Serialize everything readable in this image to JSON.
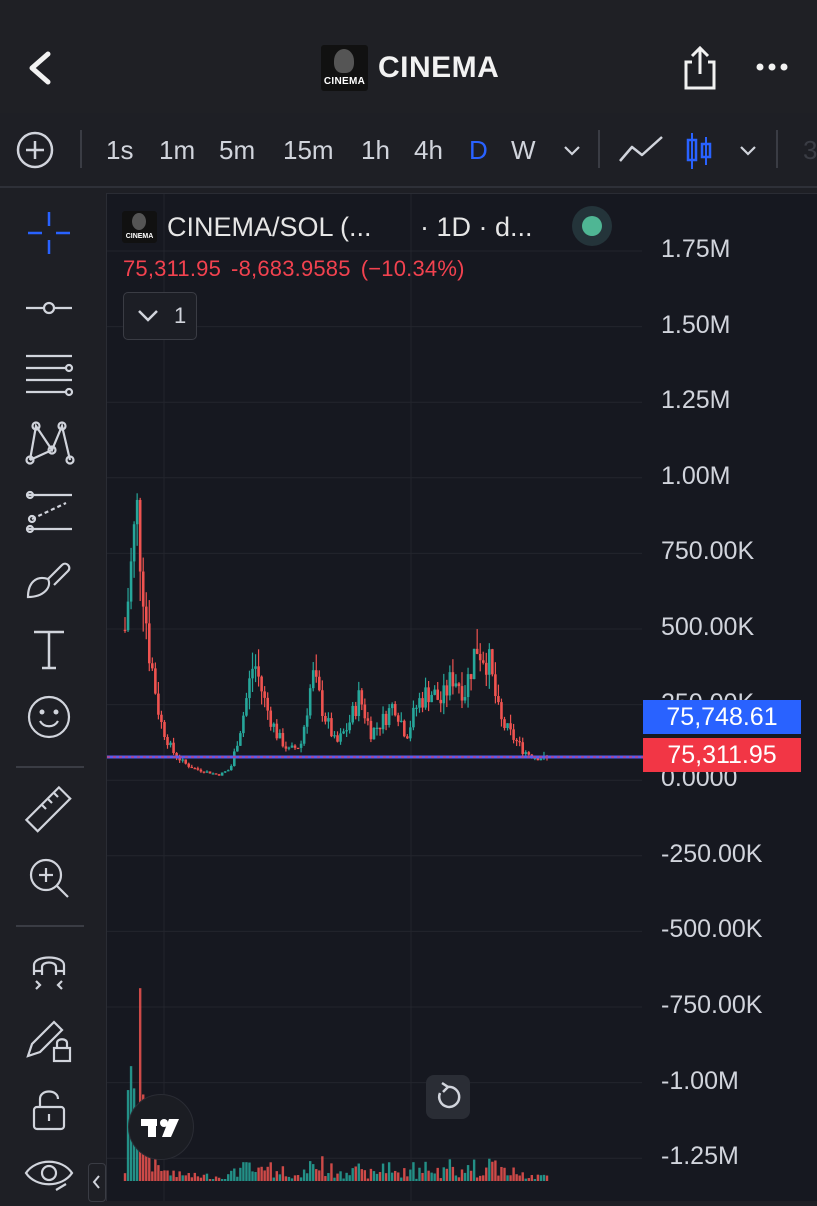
{
  "header": {
    "title": "CINEMA",
    "logo_text": "CINEMA"
  },
  "toolbar": {
    "timeframes": [
      "1s",
      "1m",
      "5m",
      "15m",
      "1h",
      "4h",
      "D",
      "W"
    ],
    "active_timeframe": "D",
    "partial_label": "3"
  },
  "legend": {
    "pair": "CINEMA/SOL (...",
    "interval": "· 1D · d...",
    "last_price": "75,311.95",
    "change": "-8,683.9585",
    "change_pct": "(−10.34%)",
    "indicator_count": "1"
  },
  "price_axis": {
    "labels": [
      "1.75M",
      "1.50M",
      "1.25M",
      "1.00M",
      "750.00K",
      "500.00K",
      "250.00K",
      "0.0000",
      "-250.00K",
      "-500.00K",
      "-750.00K",
      "-1.00M",
      "-1.25M"
    ],
    "tag_mark": "75,748.61",
    "tag_last": "75,311.95"
  },
  "colors": {
    "up": "#26a69a",
    "down": "#ef5350",
    "accent": "#2962ff",
    "price_line": "#5b5bf0"
  },
  "chart_data": {
    "type": "candlestick",
    "pair": "CINEMA/SOL",
    "interval": "1D",
    "ylim": [
      -1300000,
      1850000
    ],
    "approx_close_path": [
      500000,
      900000,
      450000,
      200000,
      100000,
      60000,
      40000,
      30000,
      20000,
      40000,
      200000,
      400000,
      250000,
      150000,
      100000,
      120000,
      350000,
      220000,
      120000,
      180000,
      280000,
      160000,
      200000,
      260000,
      150000,
      260000,
      300000,
      260000,
      350000,
      300000,
      450000,
      400000,
      200000,
      150000,
      100000,
      80000,
      75311.95
    ],
    "last_price": 75311.95,
    "marker_price": 75748.61
  },
  "sidebar": {
    "tools": [
      "crosshair-icon",
      "trend-line-icon",
      "fib-lines-icon",
      "pattern-icon",
      "prediction-icon",
      "brush-icon",
      "text-icon",
      "emoji-icon",
      "ruler-icon",
      "zoom-icon",
      "magnet-icon",
      "lock-drawing-icon",
      "lock-icon",
      "eye-icon"
    ]
  }
}
